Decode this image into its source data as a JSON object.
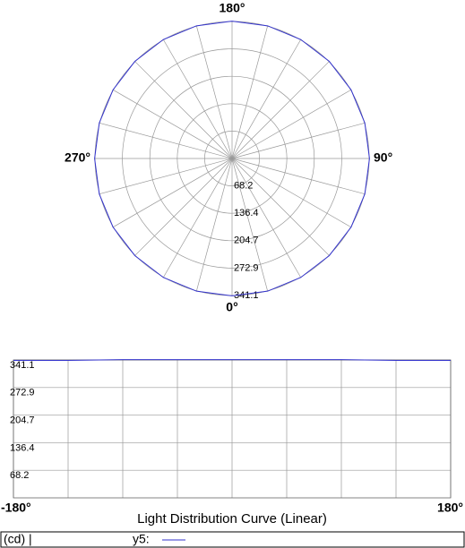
{
  "chart_data": [
    {
      "type": "polar",
      "angle_ticks": [
        {
          "value": 180,
          "label": "180°"
        },
        {
          "value": 90,
          "label": "90°"
        },
        {
          "value": 0,
          "label": "0°"
        },
        {
          "value": 270,
          "label": "270°"
        }
      ],
      "rlim": [
        0,
        341.1
      ],
      "rticks": [
        68.2,
        136.4,
        204.7,
        272.9,
        341.1
      ],
      "angles": [
        0,
        15,
        30,
        45,
        60,
        75,
        90,
        105,
        120,
        135,
        150,
        165,
        180,
        195,
        210,
        225,
        240,
        255,
        270,
        285,
        300,
        315,
        330,
        345,
        360
      ],
      "values": [
        342,
        342,
        342,
        342,
        342,
        342,
        342,
        342,
        342,
        342,
        342,
        342,
        342,
        342,
        342,
        342,
        342,
        342,
        342,
        342,
        342,
        342,
        342,
        342,
        342
      ],
      "color": "#3333cc",
      "grid": true
    },
    {
      "type": "line",
      "title": "Light Distribution Curve (Linear)",
      "x": [
        -180,
        -135,
        -90,
        -45,
        0,
        45,
        90,
        135,
        180
      ],
      "xlim": [
        -180,
        180
      ],
      "xticks": [
        {
          "value": -180,
          "label": "-180°"
        },
        {
          "value": 180,
          "label": "180°"
        }
      ],
      "ylim": [
        0,
        341.1
      ],
      "yticks": [
        68.2,
        136.4,
        204.7,
        272.9,
        341.1
      ],
      "unit_label": "(cd) |",
      "series": [
        {
          "name": "y5:",
          "color": "#3333cc",
          "values": [
            340,
            340,
            342,
            342,
            342,
            342,
            342,
            340,
            340
          ]
        }
      ],
      "grid": true
    }
  ]
}
